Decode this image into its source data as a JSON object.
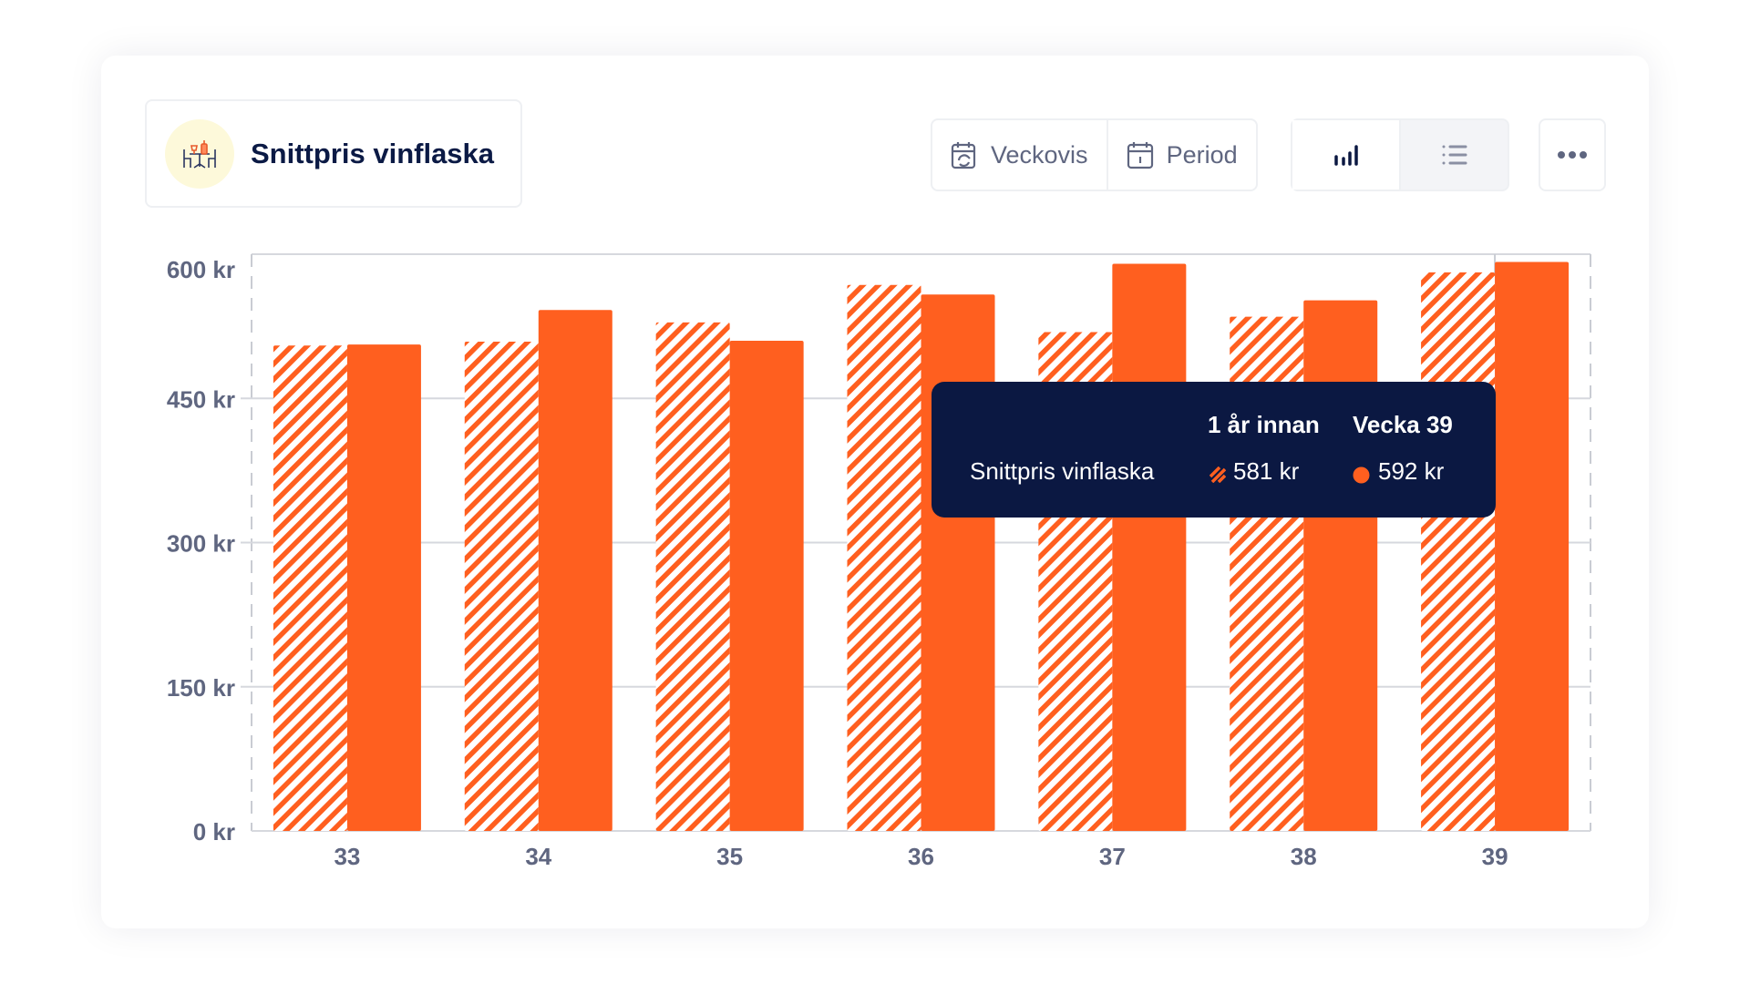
{
  "header": {
    "title": "Snittpris vinflaska",
    "icon": "restaurant-table-wine-icon"
  },
  "toolbar": {
    "weekly_label": "Veckovis",
    "period_label": "Period",
    "chart_view_icon": "bar-chart-icon",
    "list_view_icon": "list-icon",
    "more_icon": "more-horizontal-icon"
  },
  "colors": {
    "accent": "#ff5f1f",
    "navy": "#0b1842",
    "axis_text": "#5f6680"
  },
  "tooltip": {
    "col_prev": "1 år innan",
    "col_current": "Vecka 39",
    "row_label": "Snittpris vinflaska",
    "prev_value": "581 kr",
    "current_value": "592 kr"
  },
  "chart_data": {
    "type": "bar",
    "title": "Snittpris vinflaska",
    "xlabel": "",
    "ylabel": "",
    "categories": [
      "33",
      "34",
      "35",
      "36",
      "37",
      "38",
      "39"
    ],
    "series": [
      {
        "name": "1 år innan",
        "style": "hatched",
        "values": [
          505,
          509,
          529,
          568,
          519,
          535,
          581
        ]
      },
      {
        "name": "Vecka",
        "style": "solid",
        "values": [
          506,
          542,
          510,
          558,
          590,
          552,
          592
        ]
      }
    ],
    "yticks": [
      0,
      150,
      300,
      450,
      600
    ],
    "ytick_labels": [
      "0 kr",
      "150 kr",
      "300 kr",
      "450 kr",
      "600 kr"
    ],
    "ylim": [
      0,
      600
    ],
    "grid": true,
    "highlighted_category": "39"
  }
}
